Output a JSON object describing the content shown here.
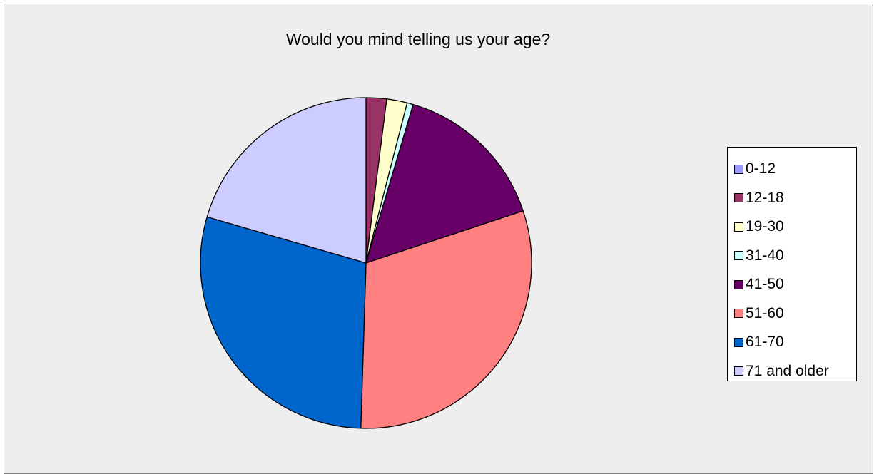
{
  "chart_data": {
    "type": "pie",
    "title": "Would you mind telling us your age?",
    "categories": [
      "0-12",
      "12-18",
      "19-30",
      "31-40",
      "41-50",
      "51-60",
      "61-70",
      "71 and older"
    ],
    "values": [
      0,
      2.0,
      2.0,
      0.6,
      15.3,
      30.6,
      29.0,
      20.5
    ],
    "colors": [
      "#9999ff",
      "#993366",
      "#ffffcc",
      "#ccffff",
      "#660066",
      "#ff8080",
      "#0066cc",
      "#ccccff"
    ],
    "start_angle_deg": 0,
    "direction": "clockwise",
    "legend": {
      "position": "right"
    }
  }
}
